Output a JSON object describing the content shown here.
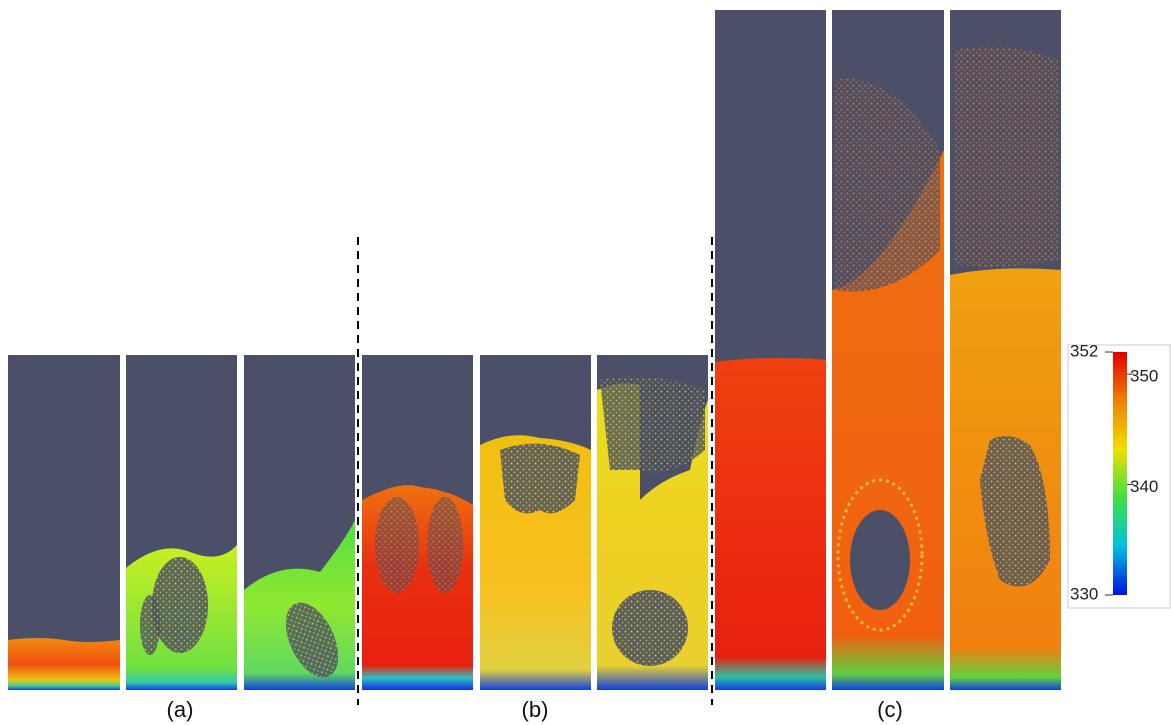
{
  "labels": [
    "(a)",
    "(b)",
    "(c)"
  ],
  "colorbar": {
    "range": [
      330,
      352
    ],
    "ticks": [
      340,
      350
    ]
  }
}
